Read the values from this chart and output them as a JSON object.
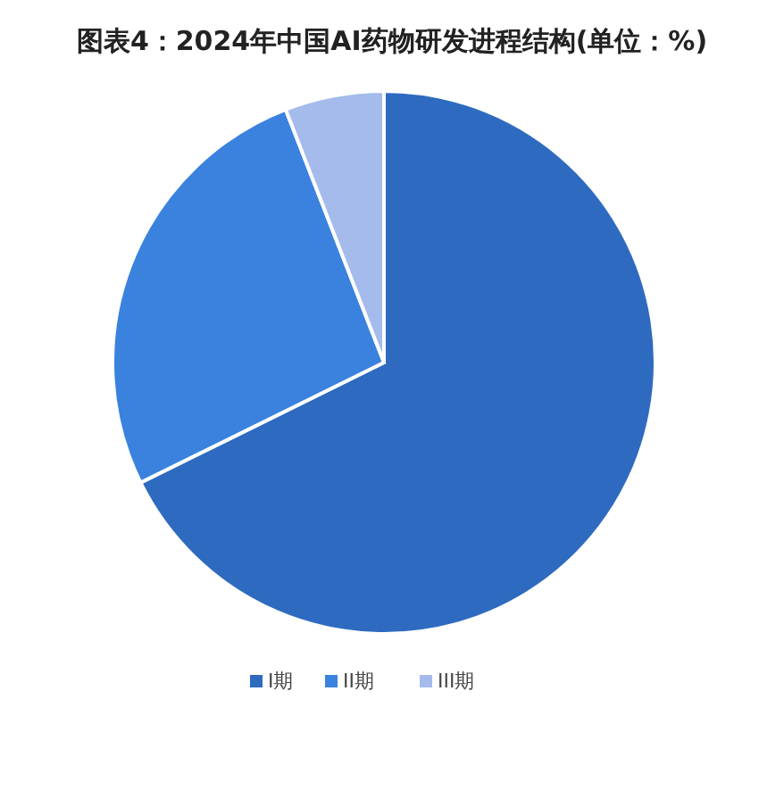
{
  "chart_data": {
    "type": "pie",
    "title": "图表4：2024年中国AI药物研发进程结构(单位：%)",
    "categories": [
      "I期",
      "II期",
      "III期"
    ],
    "values": [
      67.7,
      26.4,
      5.9
    ],
    "colors": [
      "#2e6bc0",
      "#3a82de",
      "#a4bbec"
    ],
    "legend": "bottom"
  }
}
